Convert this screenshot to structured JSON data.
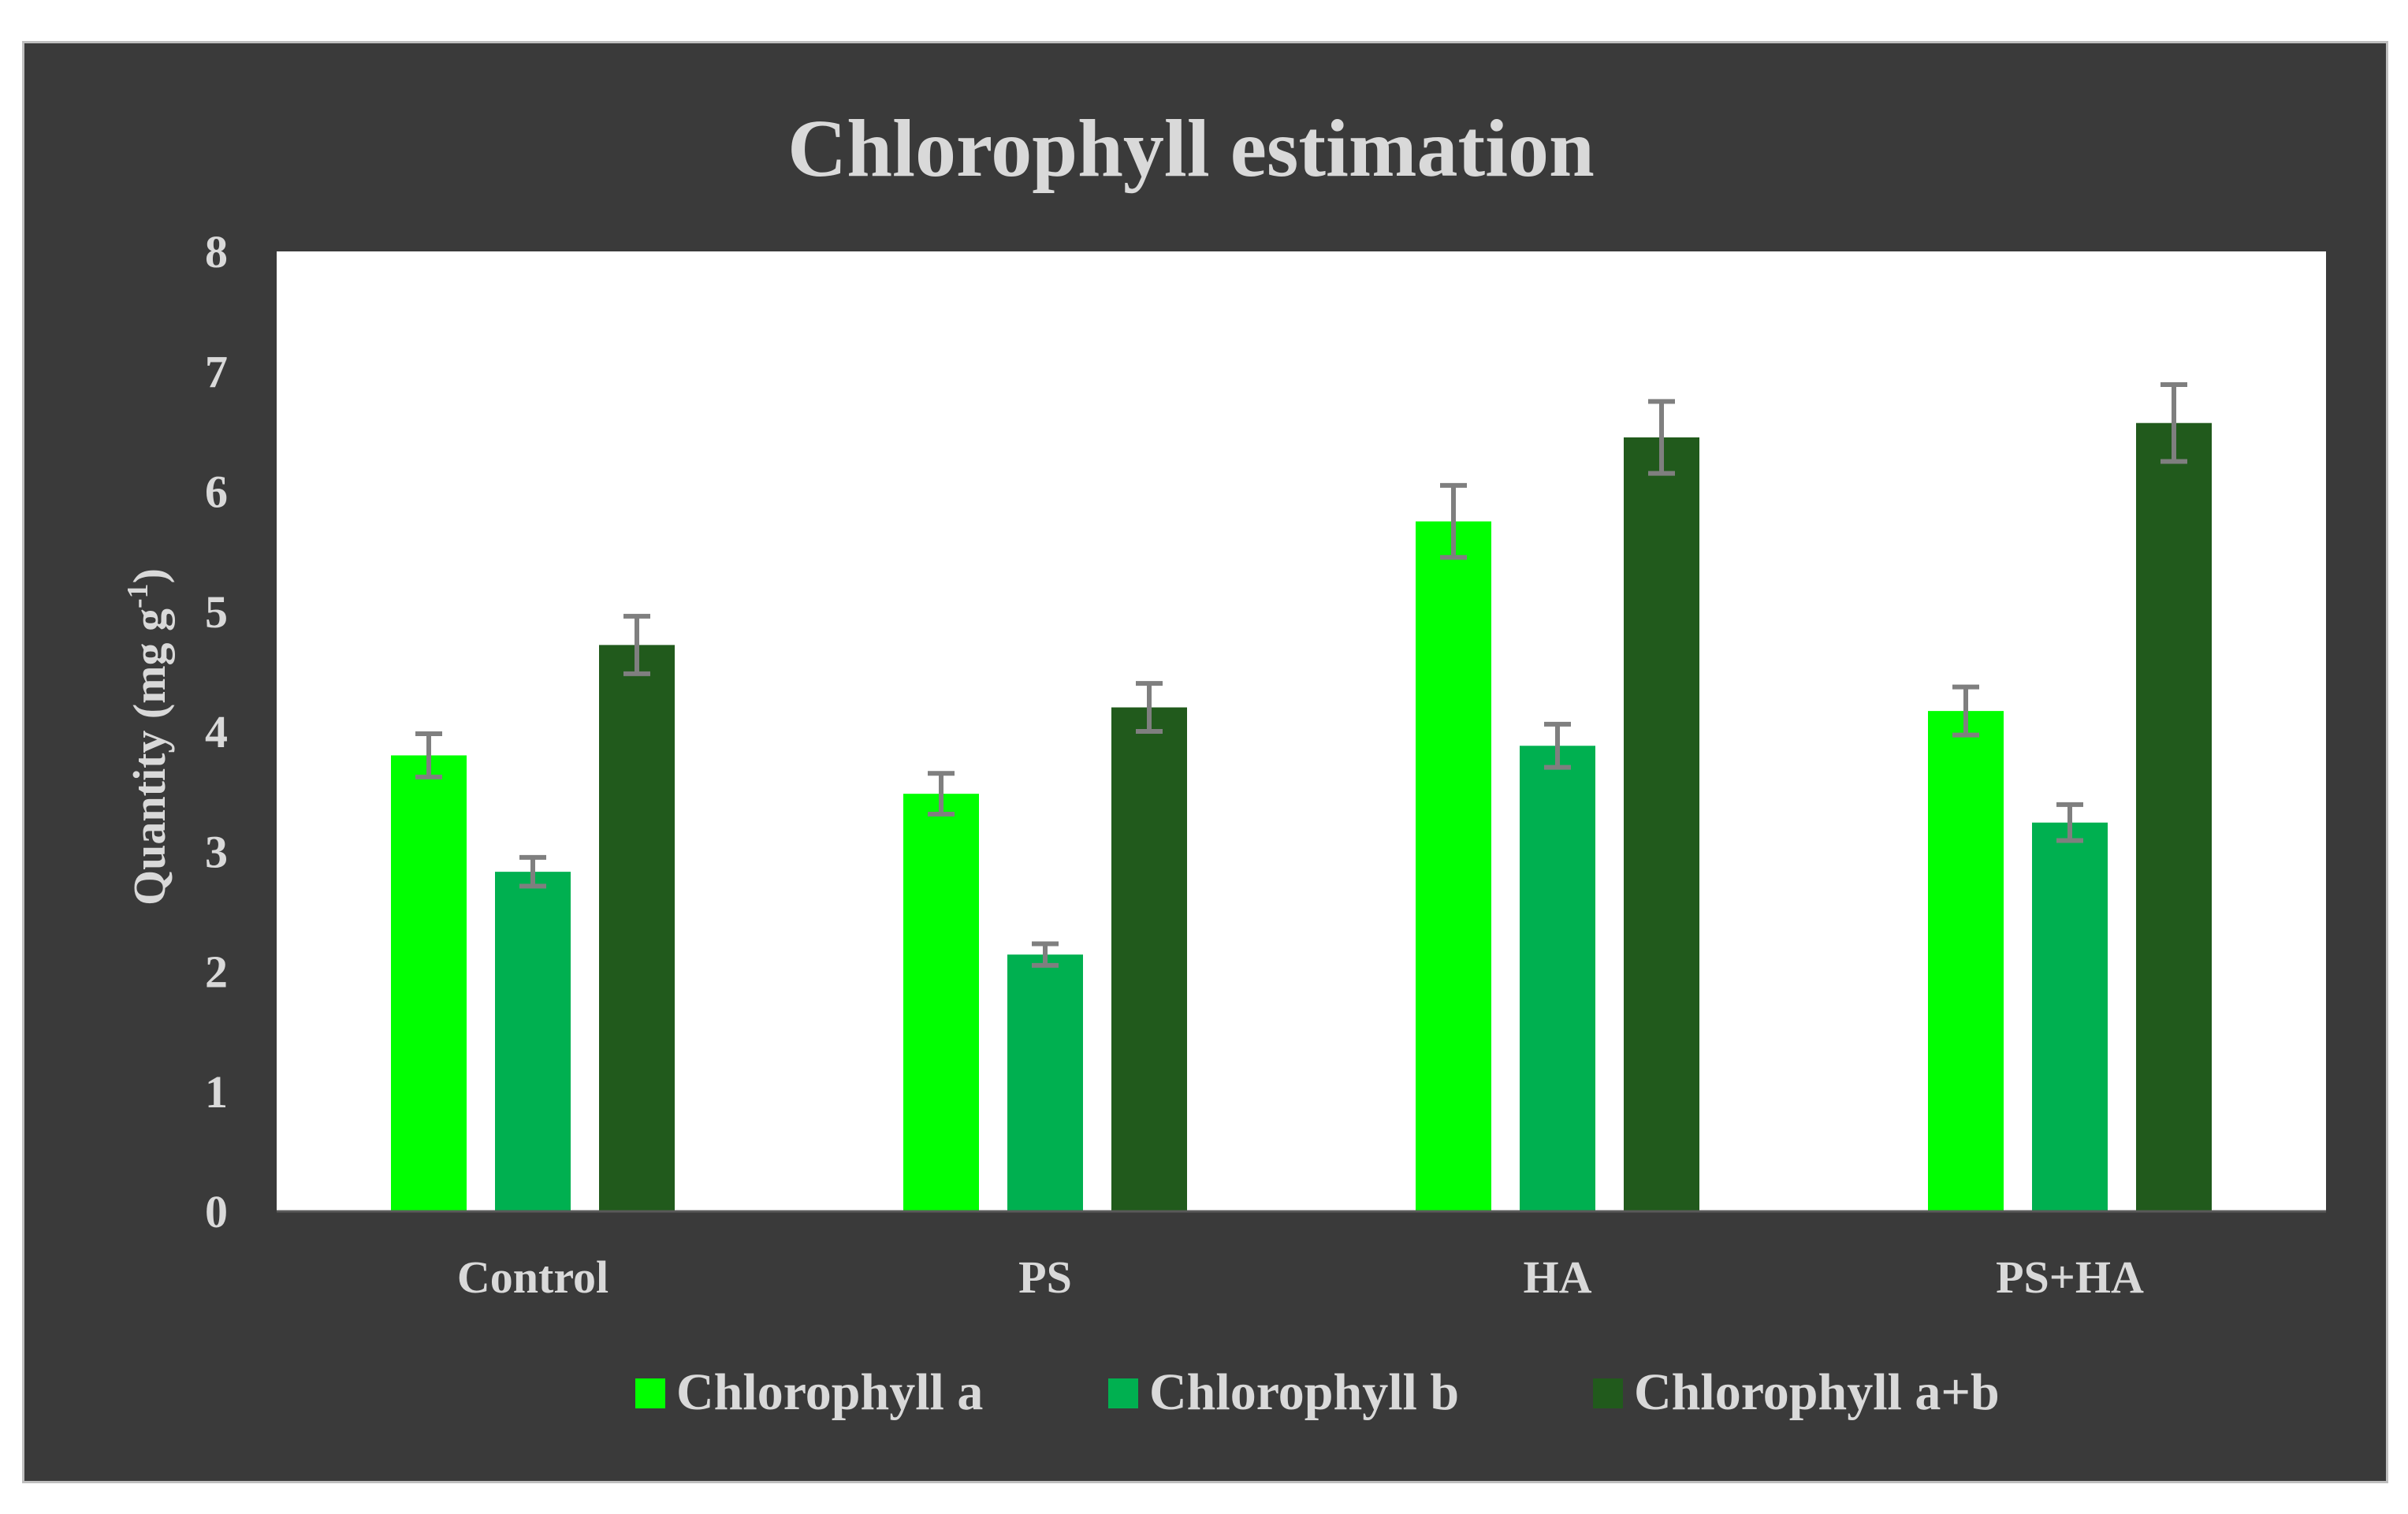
{
  "chart_data": {
    "type": "bar",
    "title": "Chlorophyll estimation",
    "xlabel": "",
    "ylabel": "Quantity (mg g",
    "ylabel_sup": "-1",
    "ylabel_end": ")",
    "ylim": [
      0,
      8
    ],
    "yticks": [
      "0",
      "1",
      "2",
      "3",
      "4",
      "5",
      "6",
      "7",
      "8"
    ],
    "grid": false,
    "legend_position": "bottom",
    "categories": [
      "Control",
      "PS",
      "HA",
      "PS+HA"
    ],
    "series": [
      {
        "name": "Chlorophyll a",
        "color": "#00ff00",
        "values": [
          3.8,
          3.48,
          5.75,
          4.17
        ],
        "errors": [
          0.18,
          0.17,
          0.3,
          0.2
        ]
      },
      {
        "name": "Chlorophyll b",
        "color": "#00b050",
        "values": [
          2.83,
          2.14,
          3.88,
          3.24
        ],
        "errors": [
          0.12,
          0.09,
          0.18,
          0.15
        ]
      },
      {
        "name": "Chlorophyll a+b",
        "color": "#215a1c",
        "values": [
          4.72,
          4.2,
          6.45,
          6.57
        ],
        "errors": [
          0.24,
          0.2,
          0.3,
          0.32
        ]
      }
    ],
    "error_bar_color": "#7f7f7f"
  }
}
